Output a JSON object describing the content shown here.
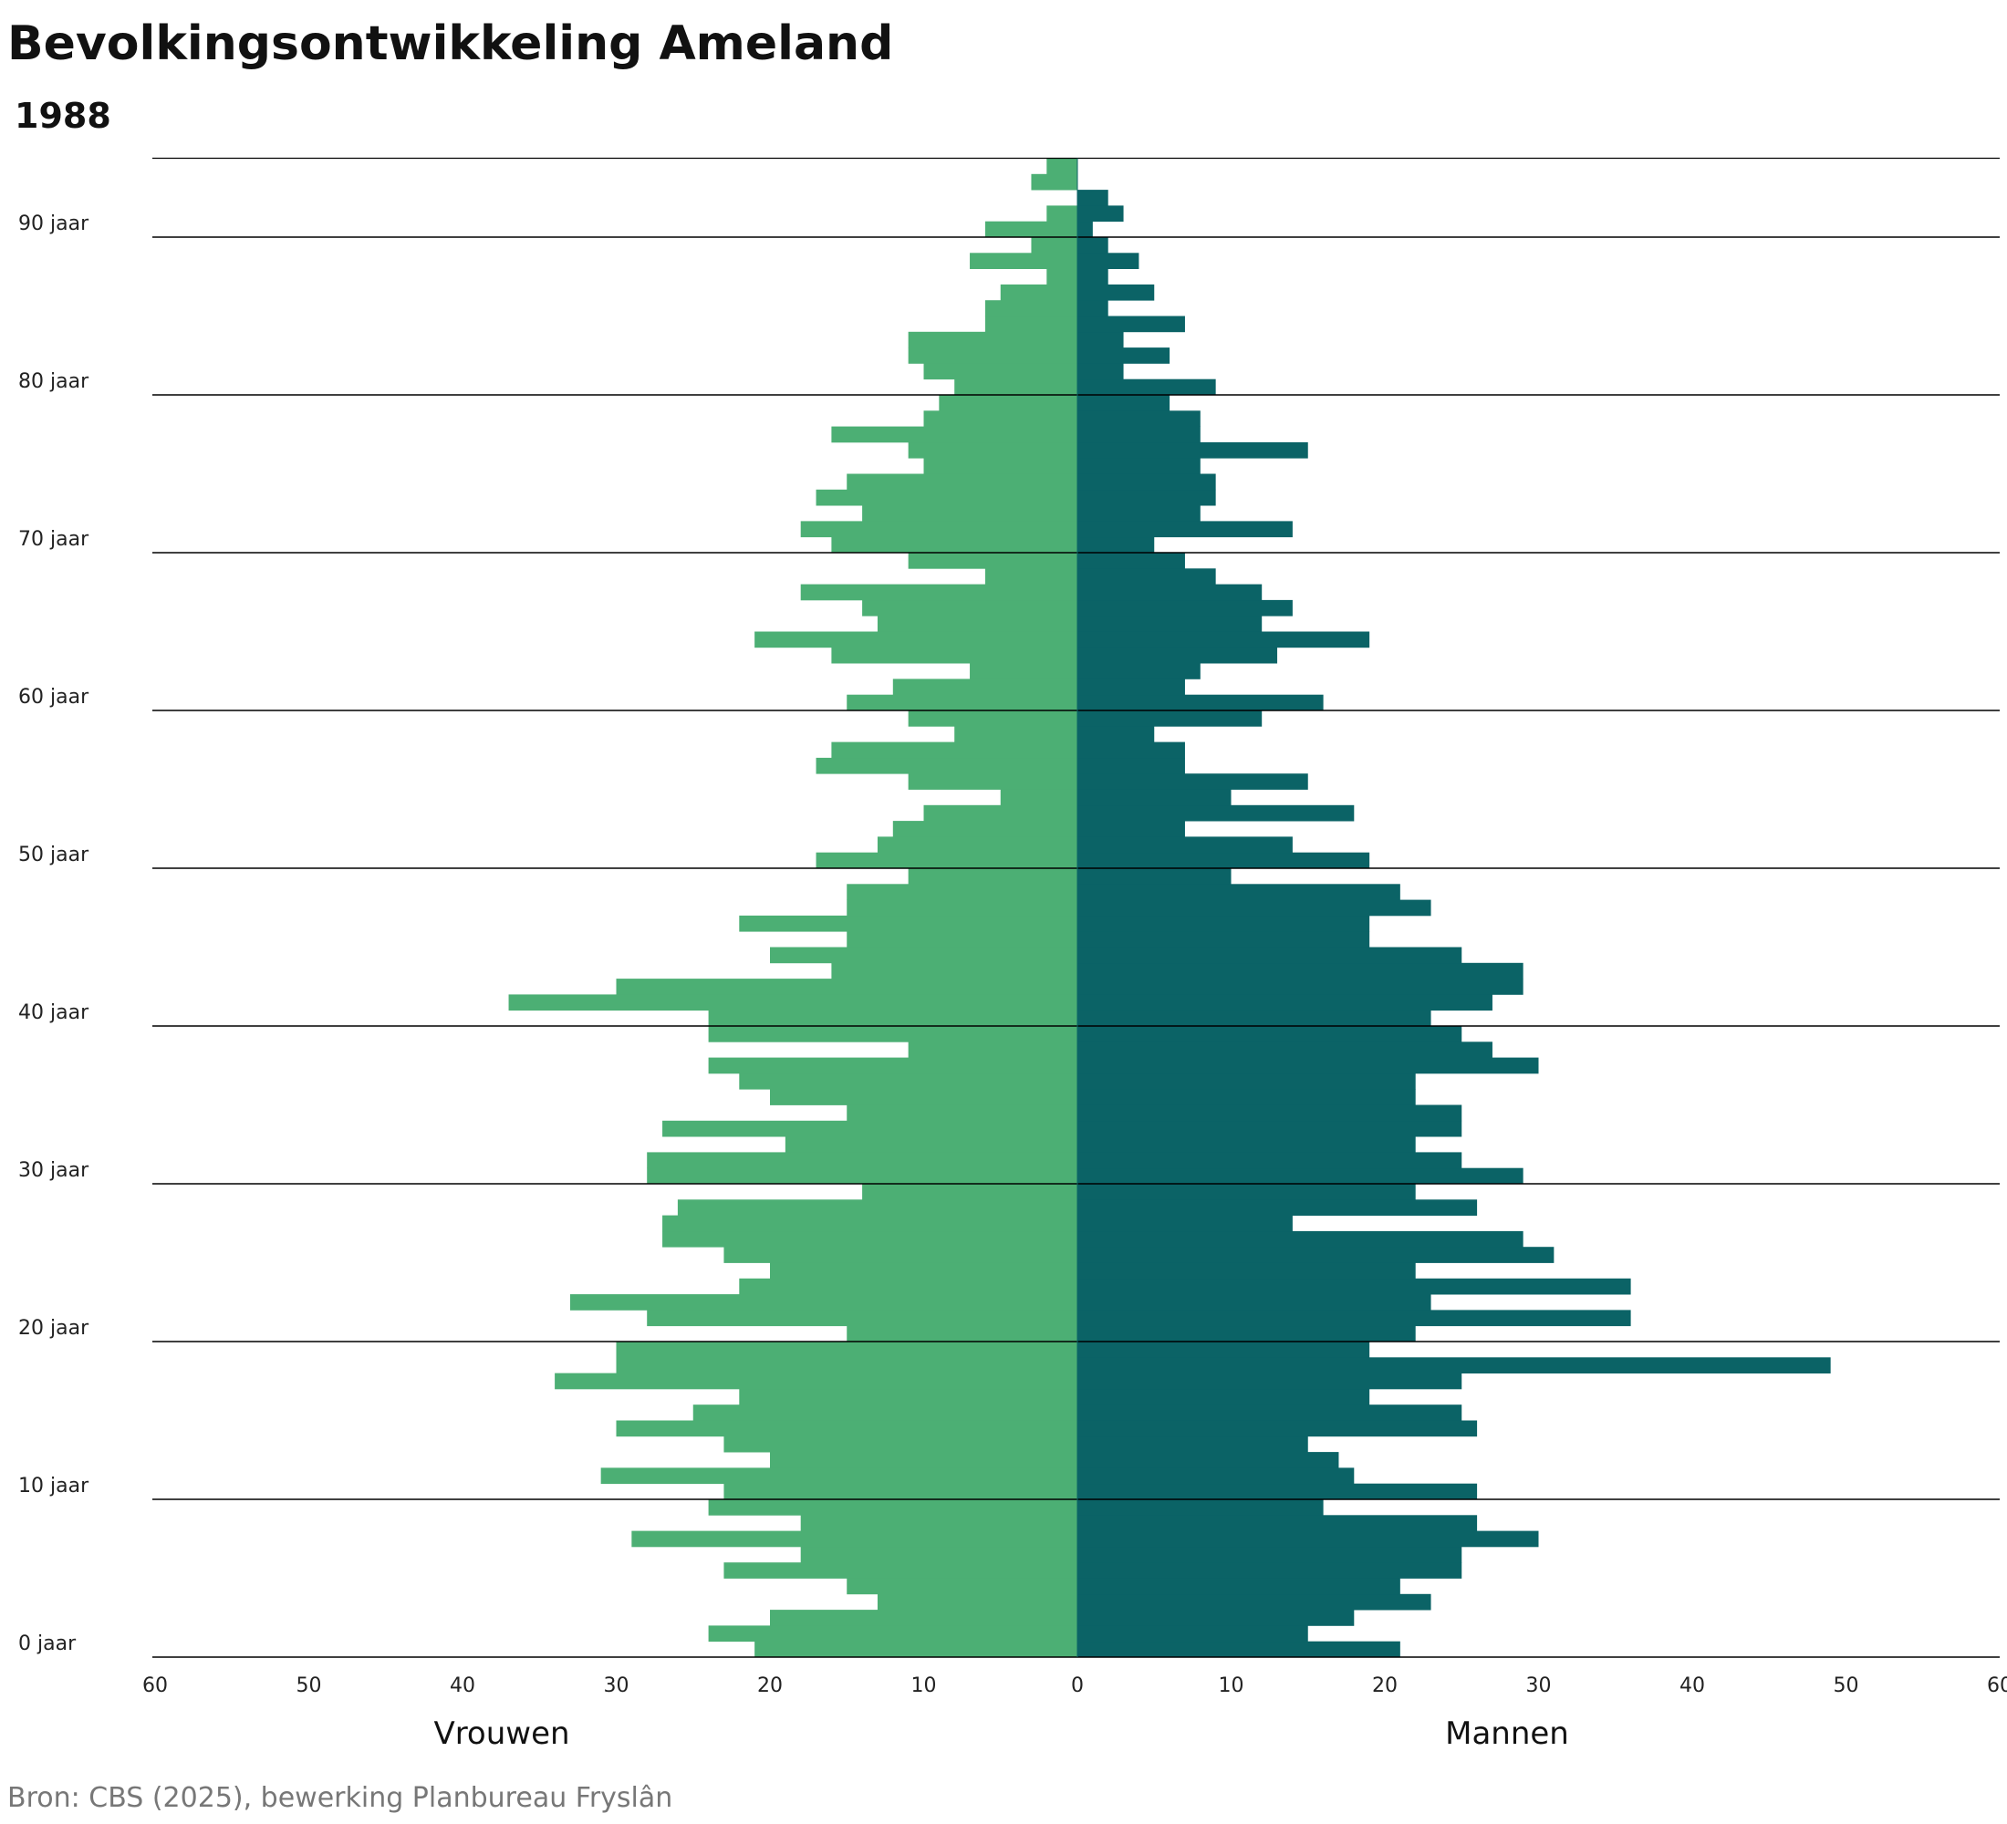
{
  "title": "Bevolkingsontwikkeling Ameland",
  "subtitle": "1988",
  "source": "Bron: CBS (2025), bewerking Planbureau Fryslân",
  "chart_data": {
    "type": "bar",
    "orientation": "horizontal-pyramid",
    "ages": [
      0,
      1,
      2,
      3,
      4,
      5,
      6,
      7,
      8,
      9,
      10,
      11,
      12,
      13,
      14,
      15,
      16,
      17,
      18,
      19,
      20,
      21,
      22,
      23,
      24,
      25,
      26,
      27,
      28,
      29,
      30,
      31,
      32,
      33,
      34,
      35,
      36,
      37,
      38,
      39,
      40,
      41,
      42,
      43,
      44,
      45,
      46,
      47,
      48,
      49,
      50,
      51,
      52,
      53,
      54,
      55,
      56,
      57,
      58,
      59,
      60,
      61,
      62,
      63,
      64,
      65,
      66,
      67,
      68,
      69,
      70,
      71,
      72,
      73,
      74,
      75,
      76,
      77,
      78,
      79,
      80,
      81,
      82,
      83,
      84,
      85,
      86,
      87,
      88,
      89,
      90,
      91,
      92,
      93,
      94
    ],
    "series": [
      {
        "name": "Vrouwen",
        "color": "#4caf74",
        "values": [
          21,
          24,
          20,
          13,
          15,
          23,
          18,
          29,
          18,
          24,
          23,
          31,
          20,
          23,
          30,
          25,
          22,
          34,
          30,
          30,
          15,
          28,
          33,
          22,
          20,
          23,
          27,
          27,
          26,
          14,
          28,
          28,
          19,
          27,
          15,
          20,
          22,
          24,
          11,
          24,
          24,
          37,
          30,
          16,
          20,
          15,
          22,
          15,
          15,
          11,
          17,
          13,
          12,
          10,
          5,
          11,
          17,
          16,
          8,
          11,
          15,
          12,
          7,
          16,
          21,
          13,
          14,
          18,
          6,
          11,
          16,
          18,
          14,
          17,
          15,
          10,
          11,
          16,
          10,
          9,
          8,
          10,
          11,
          11,
          6,
          6,
          5,
          2,
          7,
          3,
          6,
          2,
          0,
          3,
          2
        ]
      },
      {
        "name": "Mannen",
        "color": "#0b6366",
        "values": [
          21,
          15,
          18,
          23,
          21,
          25,
          25,
          30,
          26,
          16,
          26,
          18,
          17,
          15,
          26,
          25,
          19,
          25,
          49,
          19,
          22,
          36,
          23,
          36,
          22,
          31,
          29,
          14,
          26,
          22,
          29,
          25,
          22,
          25,
          25,
          22,
          22,
          30,
          27,
          25,
          23,
          27,
          29,
          29,
          25,
          19,
          19,
          23,
          21,
          10,
          19,
          14,
          7,
          18,
          10,
          15,
          7,
          7,
          5,
          12,
          16,
          7,
          8,
          13,
          19,
          12,
          14,
          12,
          9,
          7,
          5,
          14,
          8,
          9,
          9,
          8,
          15,
          8,
          8,
          6,
          9,
          3,
          6,
          3,
          7,
          2,
          5,
          2,
          4,
          2,
          1,
          3,
          2,
          0,
          0
        ]
      }
    ],
    "y_ticks": [
      "0 jaar",
      "10 jaar",
      "20 jaar",
      "30 jaar",
      "40 jaar",
      "50 jaar",
      "60 jaar",
      "70 jaar",
      "80 jaar",
      "90 jaar"
    ],
    "x_ticks": [
      "60",
      "50",
      "40",
      "30",
      "20",
      "10",
      "0",
      "10",
      "20",
      "30",
      "40",
      "50",
      "60"
    ],
    "xlim": [
      -60,
      60
    ],
    "side_labels": {
      "left": "Vrouwen",
      "right": "Mannen"
    },
    "grid": true
  }
}
